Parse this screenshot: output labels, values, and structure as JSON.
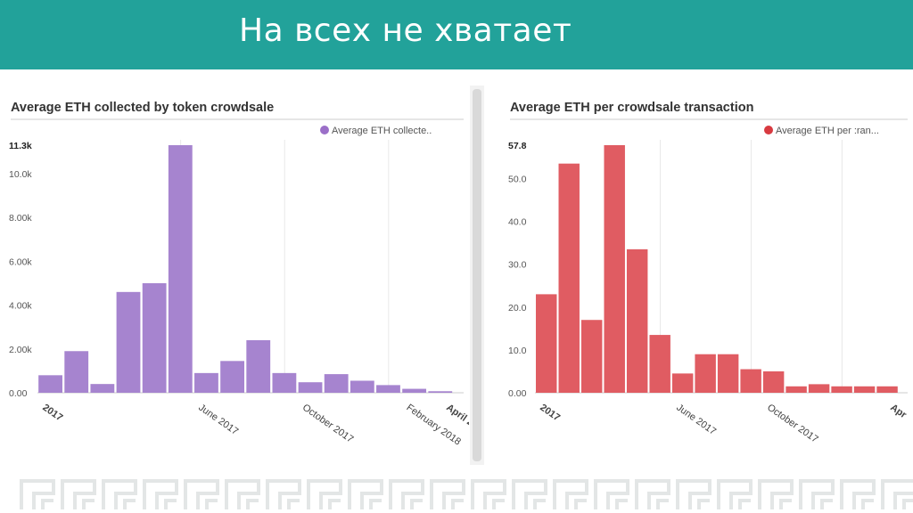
{
  "slide": {
    "title": "На всех не хватает"
  },
  "colors": {
    "header": "#22a29a",
    "purple": "#a684cf",
    "red": "#e05c62"
  },
  "chart_data": [
    {
      "type": "bar",
      "title": "Average ETH collected by token crowdsale",
      "legend": "Average ETH collecte..",
      "legend_color": "#9b6fc8",
      "bar_color": "#a684cf",
      "ylim": [
        0,
        11300
      ],
      "y_ticks": [
        {
          "value": 0,
          "label": "0.00"
        },
        {
          "value": 2000,
          "label": "2.00k"
        },
        {
          "value": 4000,
          "label": "4.00k"
        },
        {
          "value": 6000,
          "label": "6.00k"
        },
        {
          "value": 8000,
          "label": "8.00k"
        },
        {
          "value": 10000,
          "label": "10.0k"
        },
        {
          "value": 11300,
          "label": "11.3k",
          "bold": true
        }
      ],
      "x_ticks": [
        {
          "index": 0,
          "label": "2017",
          "bold": true
        },
        {
          "index": 6,
          "label": "June 2017"
        },
        {
          "index": 10,
          "label": "October 2017"
        },
        {
          "index": 14,
          "label": "February 2018"
        },
        {
          "index": 16,
          "label": "April 2",
          "bold": true
        }
      ],
      "values": [
        800,
        1900,
        400,
        4600,
        5000,
        11300,
        900,
        1450,
        2400,
        900,
        480,
        850,
        550,
        350,
        180,
        70
      ]
    },
    {
      "type": "bar",
      "title": "Average ETH per crowdsale transaction",
      "legend": "Average ETH per :ran...",
      "legend_color": "#d83a40",
      "bar_color": "#e05c62",
      "ylim": [
        0,
        57.8
      ],
      "y_ticks": [
        {
          "value": 0,
          "label": "0.00"
        },
        {
          "value": 10,
          "label": "10.0"
        },
        {
          "value": 20,
          "label": "20.0"
        },
        {
          "value": 30,
          "label": "30.0"
        },
        {
          "value": 40,
          "label": "40.0"
        },
        {
          "value": 50,
          "label": "50.0"
        },
        {
          "value": 57.8,
          "label": "57.8",
          "bold": true
        }
      ],
      "x_ticks": [
        {
          "index": 0,
          "label": "2017",
          "bold": true
        },
        {
          "index": 6,
          "label": "June 2017"
        },
        {
          "index": 10,
          "label": "October 2017"
        },
        {
          "index": 16,
          "label": "Apr",
          "bold": true
        }
      ],
      "values": [
        23,
        53.5,
        17,
        57.8,
        33.5,
        13.5,
        4.5,
        9,
        9,
        5.5,
        5,
        1.5,
        2,
        1.5,
        1.5,
        1.5
      ]
    }
  ]
}
